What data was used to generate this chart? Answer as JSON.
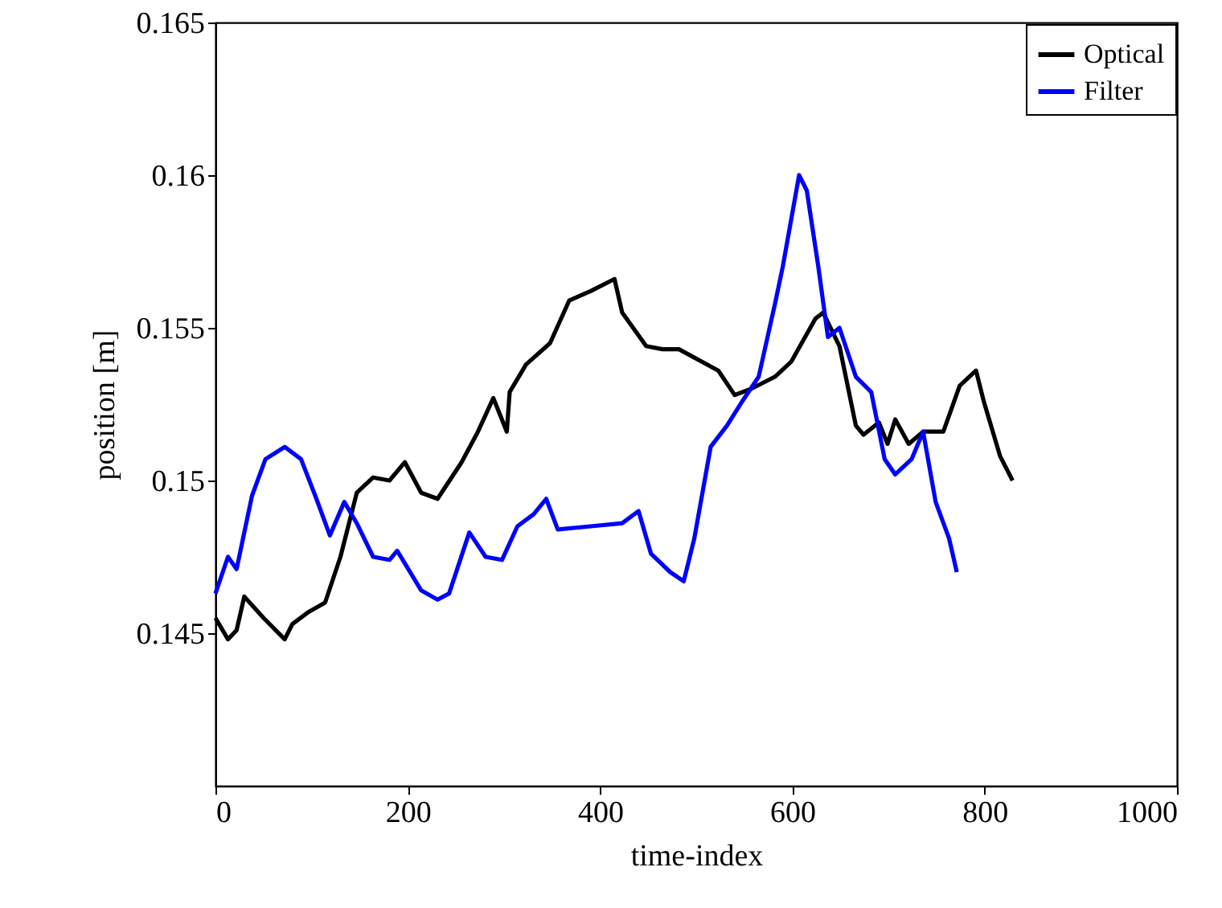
{
  "chart_data": {
    "type": "line",
    "xlabel": "time-index",
    "ylabel": "position [m]",
    "xlim": [
      0,
      1000
    ],
    "xticks": [
      0,
      200,
      400,
      600,
      800,
      1000
    ],
    "ylim": [
      0.14,
      0.165
    ],
    "yticks": [
      0.145,
      0.15,
      0.155,
      0.16,
      0.165
    ],
    "grid": false,
    "legend": "top right",
    "marker": "none",
    "line_style": "solid",
    "series": [
      {
        "name": "Optical",
        "color": "#000000",
        "x": [
          0,
          13,
          22,
          30,
          50,
          72,
          80,
          97,
          114,
          130,
          147,
          164,
          181,
          197,
          214,
          231,
          256,
          273,
          289,
          303,
          306,
          323,
          348,
          368,
          390,
          415,
          423,
          448,
          465,
          482,
          523,
          540,
          557,
          582,
          599,
          624,
          632,
          649,
          666,
          674,
          690,
          699,
          707,
          721,
          736,
          757,
          774,
          791,
          799,
          816,
          829
        ],
        "values": [
          0.1455,
          0.1448,
          0.1451,
          0.1462,
          0.1455,
          0.1448,
          0.1453,
          0.1457,
          0.146,
          0.1475,
          0.1496,
          0.1501,
          0.15,
          0.1506,
          0.1496,
          0.1494,
          0.1506,
          0.1516,
          0.1527,
          0.1516,
          0.1529,
          0.1538,
          0.1545,
          0.1559,
          0.1562,
          0.1566,
          0.1555,
          0.1544,
          0.1543,
          0.1543,
          0.1536,
          0.1528,
          0.153,
          0.1534,
          0.1539,
          0.1553,
          0.1555,
          0.1544,
          0.1518,
          0.1515,
          0.1519,
          0.1512,
          0.152,
          0.1512,
          0.1516,
          0.1516,
          0.1531,
          0.1536,
          0.1526,
          0.1508,
          0.15
        ]
      },
      {
        "name": "Filter",
        "color": "#0000ff",
        "x": [
          0,
          13,
          22,
          38,
          52,
          72,
          89,
          105,
          119,
          134,
          147,
          164,
          181,
          189,
          214,
          231,
          243,
          264,
          281,
          298,
          314,
          331,
          344,
          356,
          390,
          423,
          440,
          453,
          473,
          487,
          498,
          515,
          532,
          548,
          565,
          582,
          590,
          607,
          615,
          627,
          637,
          649,
          666,
          682,
          696,
          707,
          724,
          736,
          749,
          763,
          771
        ],
        "values": [
          0.1463,
          0.1475,
          0.1471,
          0.1495,
          0.1507,
          0.1511,
          0.1507,
          0.1494,
          0.1482,
          0.1493,
          0.1486,
          0.1475,
          0.1474,
          0.1477,
          0.1464,
          0.1461,
          0.1463,
          0.1483,
          0.1475,
          0.1474,
          0.1485,
          0.1489,
          0.1494,
          0.1484,
          0.1485,
          0.1486,
          0.149,
          0.1476,
          0.147,
          0.1467,
          0.1481,
          0.1511,
          0.1518,
          0.1526,
          0.1534,
          0.1558,
          0.157,
          0.16,
          0.1595,
          0.157,
          0.1547,
          0.155,
          0.1534,
          0.1529,
          0.1507,
          0.1502,
          0.1507,
          0.1516,
          0.1493,
          0.1481,
          0.147
        ]
      }
    ]
  }
}
